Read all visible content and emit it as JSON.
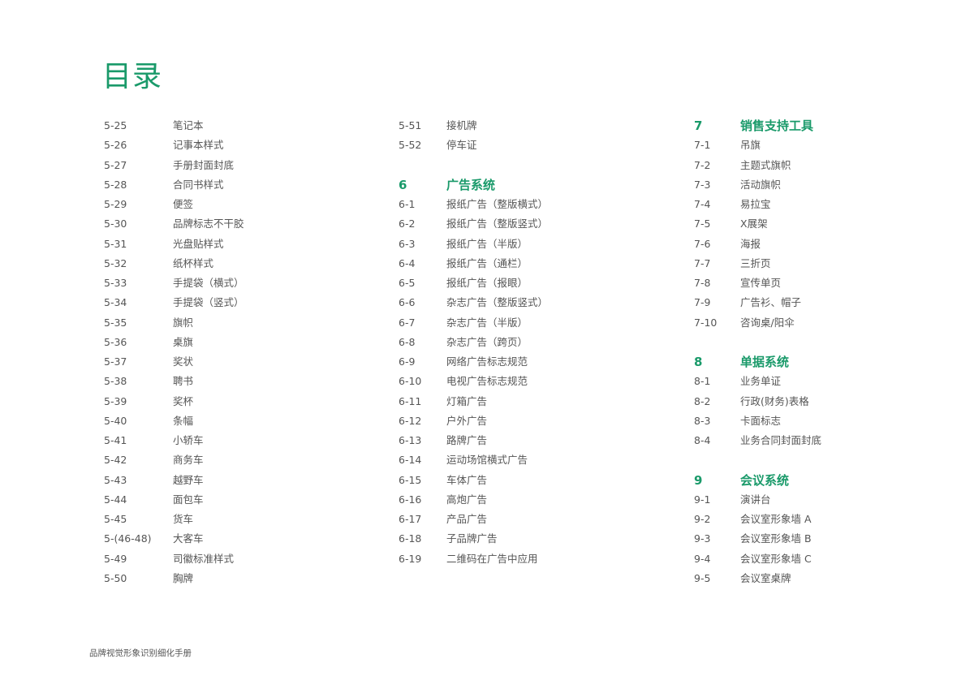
{
  "title": "目录",
  "footer": "品牌视觉形象识别细化手册",
  "accent_color": "#1a9a6a",
  "columns": [
    {
      "label_offset": 85,
      "rows": [
        {
          "num": "5-25",
          "label": "笔记本"
        },
        {
          "num": "5-26",
          "label": "记事本样式"
        },
        {
          "num": "5-27",
          "label": "手册封面封底"
        },
        {
          "num": "5-28",
          "label": "合同书样式"
        },
        {
          "num": "5-29",
          "label": "便签"
        },
        {
          "num": "5-30",
          "label": "品牌标志不干胶"
        },
        {
          "num": "5-31",
          "label": "光盘贴样式"
        },
        {
          "num": "5-32",
          "label": "纸杯样式"
        },
        {
          "num": "5-33",
          "label": "手提袋（横式）"
        },
        {
          "num": "5-34",
          "label": "手提袋（竖式）"
        },
        {
          "num": "5-35",
          "label": "旗帜"
        },
        {
          "num": "5-36",
          "label": "桌旗"
        },
        {
          "num": "5-37",
          "label": "奖状"
        },
        {
          "num": "5-38",
          "label": "聘书"
        },
        {
          "num": "5-39",
          "label": "奖杯"
        },
        {
          "num": "5-40",
          "label": "条幅"
        },
        {
          "num": "5-41",
          "label": "小轿车"
        },
        {
          "num": "5-42",
          "label": "商务车"
        },
        {
          "num": "5-43",
          "label": "越野车"
        },
        {
          "num": "5-44",
          "label": "面包车"
        },
        {
          "num": "5-45",
          "label": "货车"
        },
        {
          "num": "5-(46-48)",
          "label": "大客车"
        },
        {
          "num": "5-49",
          "label": "司徽标准样式"
        },
        {
          "num": "5-50",
          "label": "胸牌"
        }
      ]
    },
    {
      "label_offset": 59,
      "rows": [
        {
          "num": "5-51",
          "label": "接机牌"
        },
        {
          "num": "5-52",
          "label": "停车证"
        },
        {
          "blank": true
        },
        {
          "num": "6",
          "label": "广告系统",
          "heading": true
        },
        {
          "num": "6-1",
          "label": "报纸广告（整版横式）"
        },
        {
          "num": "6-2",
          "label": "报纸广告（整版竖式）"
        },
        {
          "num": "6-3",
          "label": "报纸广告（半版）"
        },
        {
          "num": "6-4",
          "label": "报纸广告（通栏）"
        },
        {
          "num": "6-5",
          "label": "报纸广告（报眼）"
        },
        {
          "num": "6-6",
          "label": "杂志广告（整版竖式）"
        },
        {
          "num": "6-7",
          "label": "杂志广告（半版）"
        },
        {
          "num": "6-8",
          "label": "杂志广告（跨页）"
        },
        {
          "num": "6-9",
          "label": "网络广告标志规范"
        },
        {
          "num": "6-10",
          "label": "电视广告标志规范"
        },
        {
          "num": "6-11",
          "label": "灯箱广告"
        },
        {
          "num": "6-12",
          "label": "户外广告"
        },
        {
          "num": "6-13",
          "label": "路牌广告"
        },
        {
          "num": "6-14",
          "label": "运动场馆横式广告"
        },
        {
          "num": "6-15",
          "label": "车体广告"
        },
        {
          "num": "6-16",
          "label": "高炮广告"
        },
        {
          "num": "6-17",
          "label": "产品广告"
        },
        {
          "num": "6-18",
          "label": "子品牌广告"
        },
        {
          "num": "6-19",
          "label": "二维码在广告中应用"
        }
      ]
    },
    {
      "label_offset": 57,
      "rows": [
        {
          "num": "7",
          "label": "销售支持工具",
          "heading": true
        },
        {
          "num": "7-1",
          "label": "吊旗"
        },
        {
          "num": "7-2",
          "label": "主题式旗帜"
        },
        {
          "num": "7-3",
          "label": "活动旗帜"
        },
        {
          "num": "7-4",
          "label": "易拉宝"
        },
        {
          "num": "7-5",
          "label": "X展架"
        },
        {
          "num": "7-6",
          "label": "海报"
        },
        {
          "num": "7-7",
          "label": "三折页"
        },
        {
          "num": "7-8",
          "label": "宣传单页"
        },
        {
          "num": "7-9",
          "label": "广告衫、帽子"
        },
        {
          "num": "7-10",
          "label": "咨询桌/阳伞"
        },
        {
          "blank": true
        },
        {
          "num": "8",
          "label": "单据系统",
          "heading": true
        },
        {
          "num": "8-1",
          "label": "业务单证"
        },
        {
          "num": "8-2",
          "label": "行政(财务)表格"
        },
        {
          "num": "8-3",
          "label": "卡面标志"
        },
        {
          "num": "8-4",
          "label": "业务合同封面封底"
        },
        {
          "blank": true
        },
        {
          "num": "9",
          "label": "会议系统",
          "heading": true
        },
        {
          "num": "9-1",
          "label": "演讲台"
        },
        {
          "num": "9-2",
          "label": "会议室形象墙 A"
        },
        {
          "num": "9-3",
          "label": "会议室形象墙 B"
        },
        {
          "num": "9-4",
          "label": "会议室形象墙 C"
        },
        {
          "num": "9-5",
          "label": "会议室桌牌"
        }
      ]
    }
  ]
}
